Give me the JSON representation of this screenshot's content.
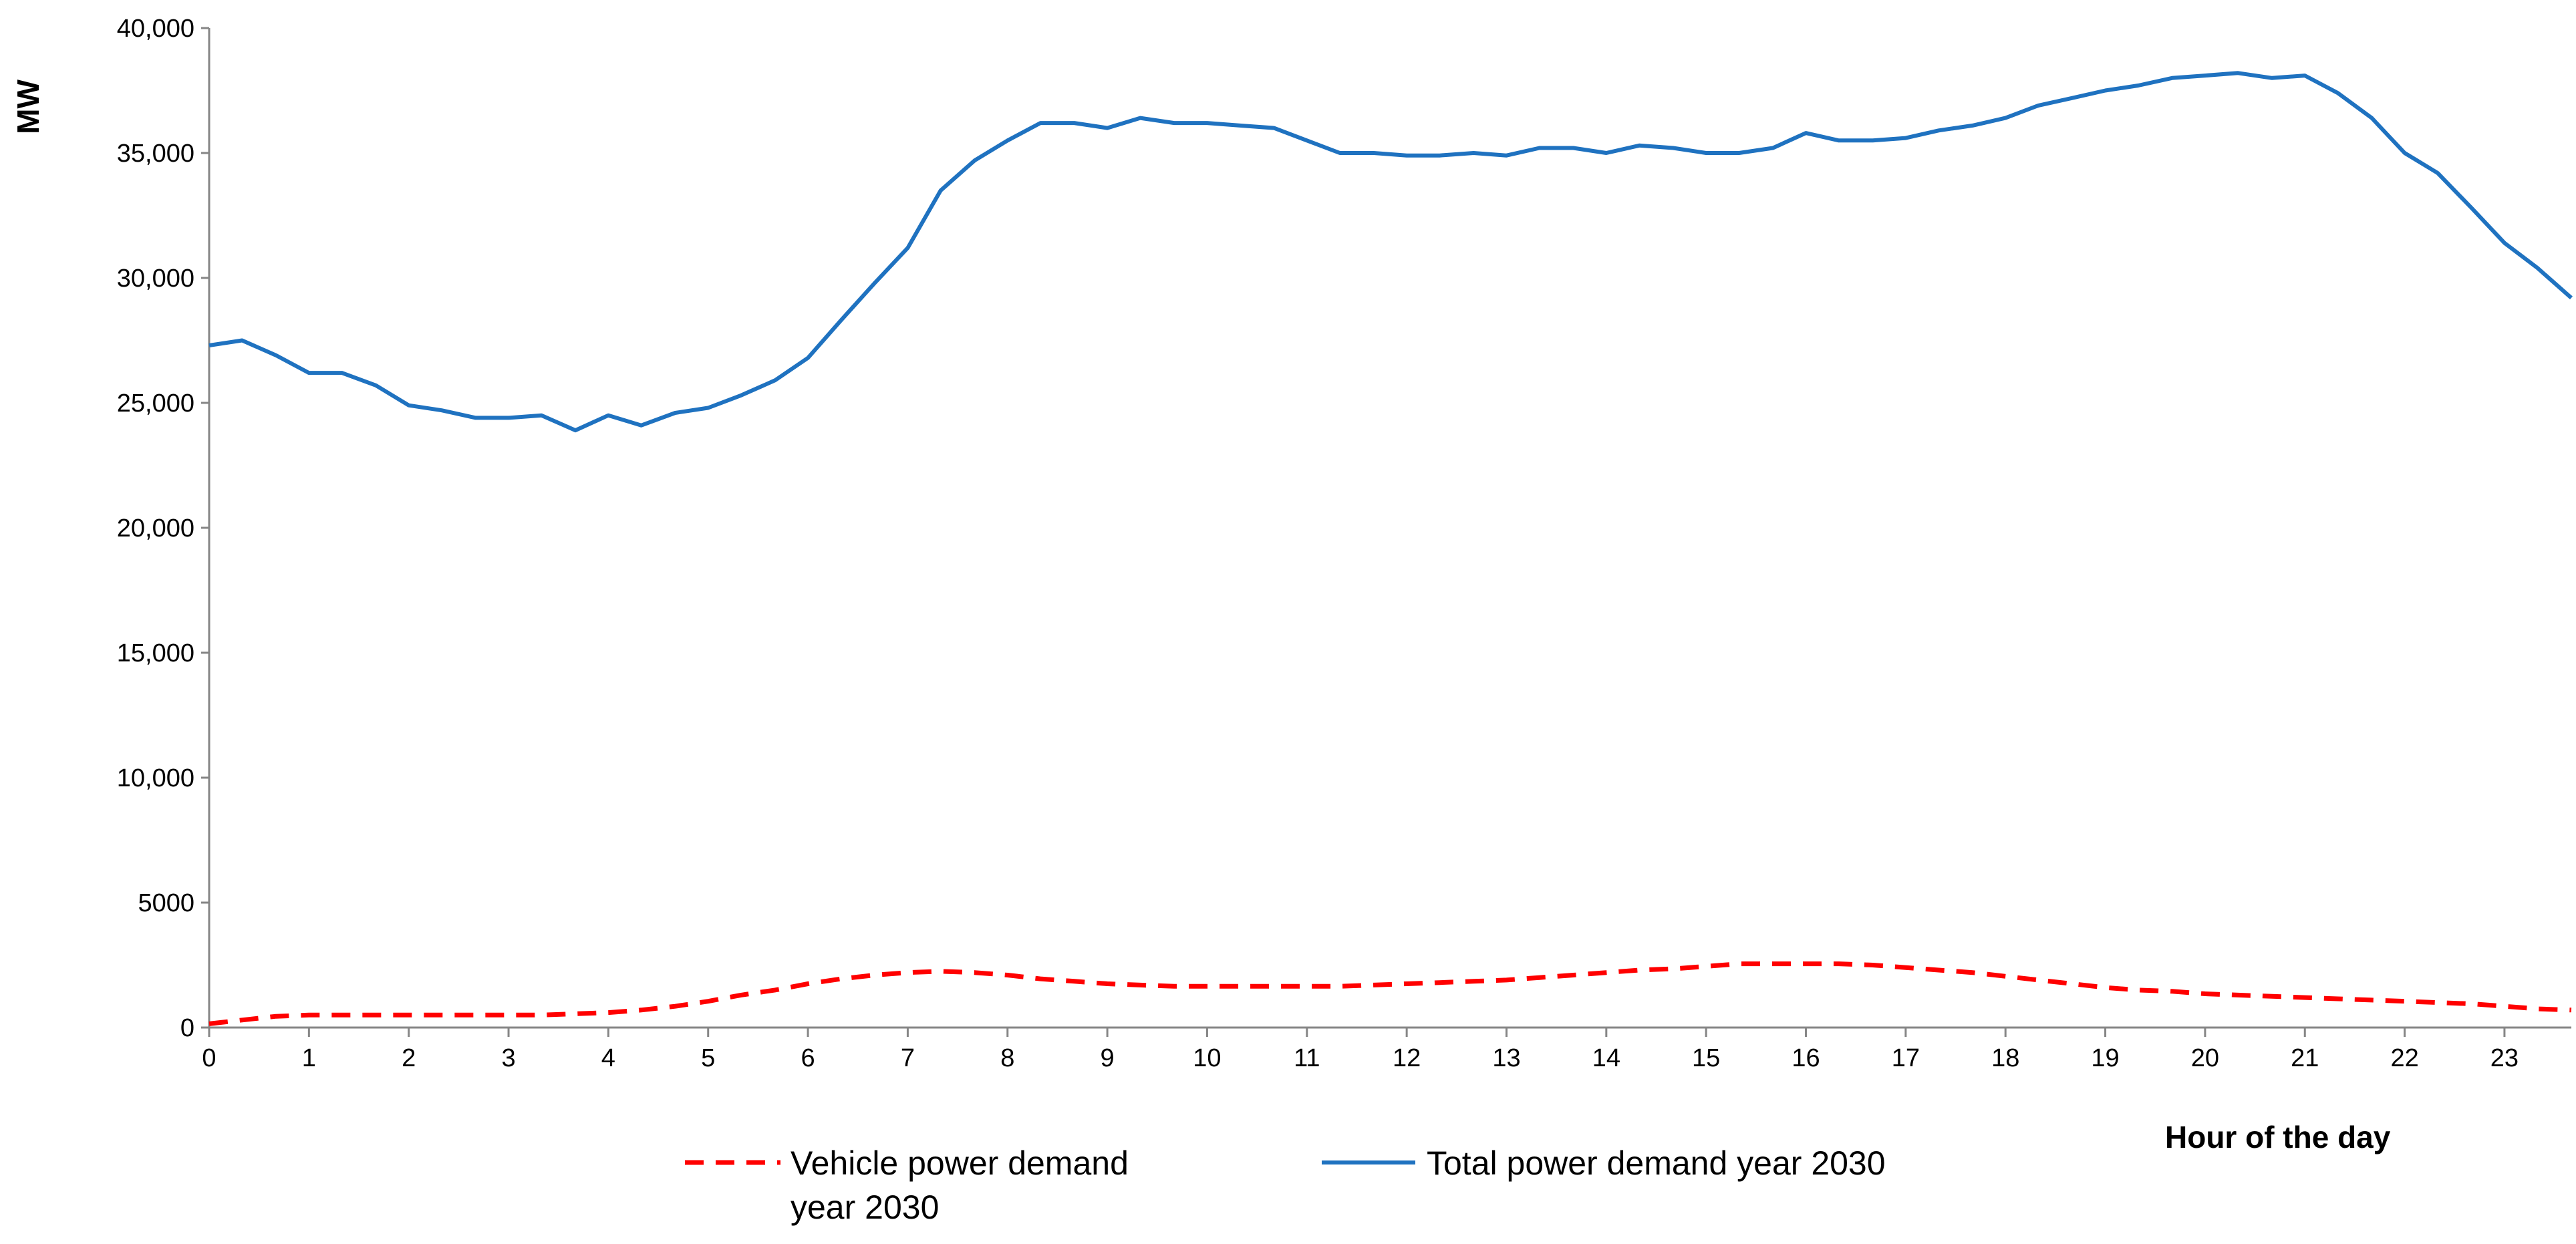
{
  "chart_data": {
    "type": "line",
    "title": "",
    "xlabel": "Hour of the day",
    "ylabel": "MW",
    "xlim": [
      0,
      23.67
    ],
    "ylim": [
      0,
      40000
    ],
    "grid": false,
    "legend_position": "bottom",
    "x_ticks": [
      0,
      1,
      2,
      3,
      4,
      5,
      6,
      7,
      8,
      9,
      10,
      11,
      12,
      13,
      14,
      15,
      16,
      17,
      18,
      19,
      20,
      21,
      22,
      23
    ],
    "x_tick_labels": [
      "0",
      "1",
      "2",
      "3",
      "4",
      "5",
      "6",
      "7",
      "8",
      "9",
      "10",
      "11",
      "12",
      "13",
      "14",
      "15",
      "16",
      "17",
      "18",
      "19",
      "20",
      "21",
      "22",
      "23"
    ],
    "y_ticks": [
      0,
      5000,
      10000,
      15000,
      20000,
      25000,
      30000,
      35000,
      40000
    ],
    "y_tick_labels": [
      "0",
      "5000",
      "10,000",
      "15,000",
      "20,000",
      "25,000",
      "30,000",
      "35,000",
      "40,000"
    ],
    "x": [
      0,
      0.33,
      0.67,
      1,
      1.33,
      1.67,
      2,
      2.33,
      2.67,
      3,
      3.33,
      3.67,
      4,
      4.33,
      4.67,
      5,
      5.33,
      5.67,
      6,
      6.33,
      6.67,
      7,
      7.33,
      7.67,
      8,
      8.33,
      8.67,
      9,
      9.33,
      9.67,
      10,
      10.33,
      10.67,
      11,
      11.33,
      11.67,
      12,
      12.33,
      12.67,
      13,
      13.33,
      13.67,
      14,
      14.33,
      14.67,
      15,
      15.33,
      15.67,
      16,
      16.33,
      16.67,
      17,
      17.33,
      17.67,
      18,
      18.33,
      18.67,
      19,
      19.33,
      19.67,
      20,
      20.33,
      20.67,
      21,
      21.33,
      21.67,
      22,
      22.33,
      22.67,
      23,
      23.33,
      23.67
    ],
    "series": [
      {
        "name": "Vehicle power demand year 2030",
        "color": "#ff0000",
        "style": "dashed",
        "values": [
          150,
          300,
          450,
          500,
          500,
          500,
          500,
          500,
          500,
          500,
          500,
          550,
          600,
          700,
          850,
          1050,
          1300,
          1500,
          1750,
          1950,
          2100,
          2200,
          2250,
          2200,
          2100,
          1950,
          1850,
          1750,
          1700,
          1650,
          1650,
          1650,
          1650,
          1650,
          1650,
          1700,
          1750,
          1800,
          1850,
          1900,
          2000,
          2100,
          2200,
          2300,
          2350,
          2450,
          2550,
          2550,
          2550,
          2550,
          2500,
          2400,
          2300,
          2200,
          2050,
          1900,
          1750,
          1600,
          1500,
          1450,
          1350,
          1300,
          1250,
          1200,
          1150,
          1100,
          1050,
          1000,
          950,
          850,
          750,
          700
        ]
      },
      {
        "name": "Total power demand year 2030",
        "color": "#1f72c0",
        "style": "solid",
        "values": [
          27300,
          27500,
          26900,
          26200,
          26200,
          25700,
          24900,
          24700,
          24400,
          24400,
          24500,
          23900,
          24500,
          24100,
          24600,
          24800,
          25300,
          25900,
          26800,
          28300,
          29800,
          31200,
          33500,
          34700,
          35500,
          36200,
          36200,
          36000,
          36400,
          36200,
          36200,
          36100,
          36000,
          35500,
          35000,
          35000,
          34900,
          34900,
          35000,
          34900,
          35200,
          35200,
          35000,
          35300,
          35200,
          35000,
          35000,
          35200,
          35800,
          35500,
          35500,
          35600,
          35900,
          36100,
          36400,
          36900,
          37200,
          37500,
          37700,
          38000,
          38100,
          38200,
          38000,
          38100,
          37400,
          36400,
          35000,
          34200,
          32800,
          31400,
          30400,
          29200
        ]
      }
    ]
  }
}
